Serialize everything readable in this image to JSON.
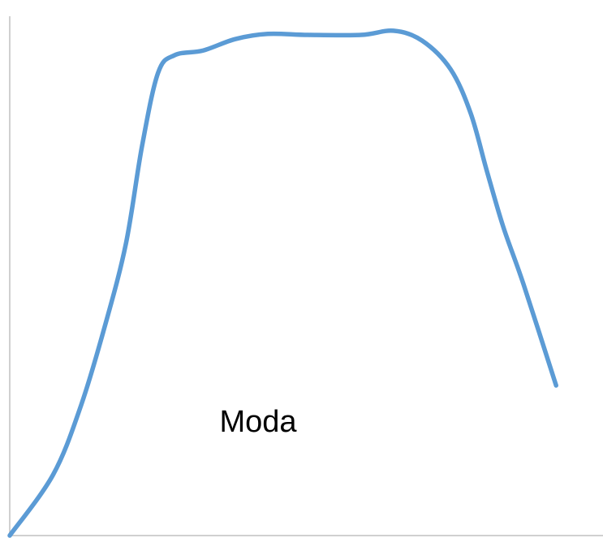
{
  "chart_data": {
    "type": "line",
    "annotation": "Moda",
    "x": [
      0,
      7.3,
      12.0,
      16.1,
      19.6,
      22.3,
      25.0,
      27.8,
      32.6,
      38.0,
      43.5,
      50.3,
      59.2,
      64.7,
      69.5,
      74.3,
      77.7,
      80.4,
      83.2,
      86.6,
      92.1
    ],
    "series": [
      {
        "color": "#5b9bd5",
        "values": [
          0,
          11.7,
          25.0,
          40.6,
          56.3,
          75.0,
          89.1,
          92.5,
          93.4,
          95.6,
          96.6,
          96.4,
          96.4,
          97.2,
          95.3,
          89.8,
          81.3,
          70.3,
          59.4,
          48.4,
          28.9
        ]
      }
    ],
    "xlim": [
      0,
      100
    ],
    "ylim": [
      0,
      100
    ]
  }
}
